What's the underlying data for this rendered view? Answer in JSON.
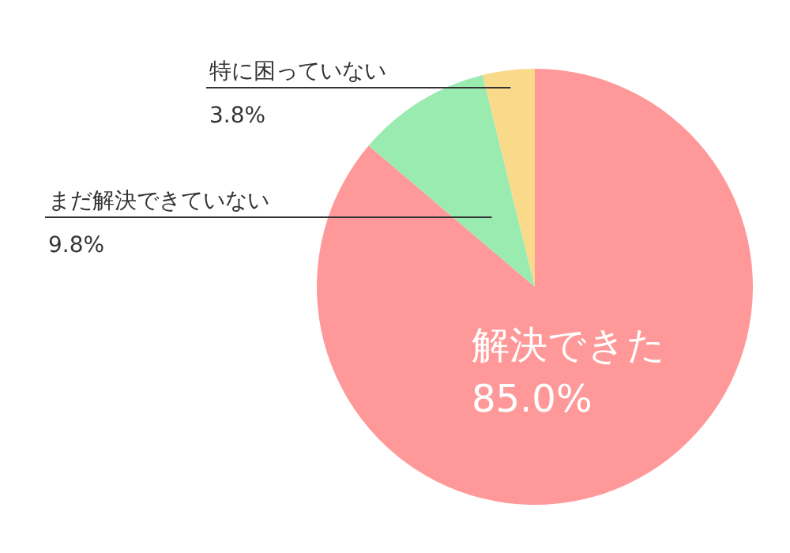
{
  "chart_data": {
    "type": "pie",
    "categories": [
      "解決できた",
      "まだ解決できていない",
      "特に困っていない"
    ],
    "values": [
      85.0,
      9.8,
      3.8
    ],
    "colors": [
      "#ff9999",
      "#99ebb0",
      "#f9d98a"
    ],
    "value_labels": [
      "85.0%",
      "9.8%",
      "3.8%"
    ]
  }
}
